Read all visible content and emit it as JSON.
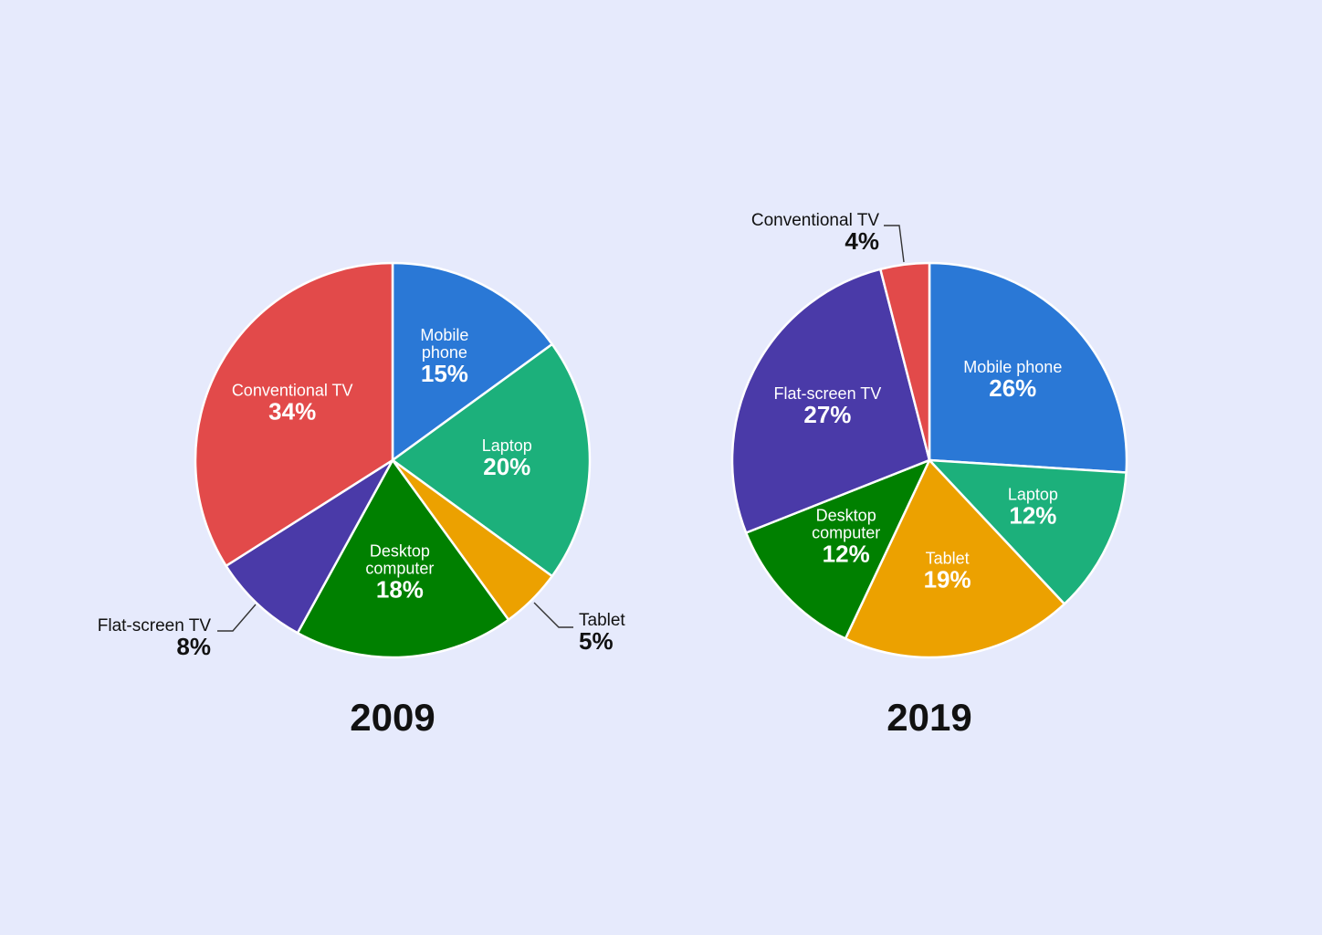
{
  "chart_data": [
    {
      "type": "pie",
      "title": "2009",
      "slices": [
        {
          "label": "Mobile\nphone",
          "value": 15,
          "display": "15%",
          "color": "#2a78d6"
        },
        {
          "label": "Laptop",
          "value": 20,
          "display": "20%",
          "color": "#1cb07b"
        },
        {
          "label": "Tablet",
          "value": 5,
          "display": "5%",
          "color": "#eca100"
        },
        {
          "label": "Desktop\ncomputer",
          "value": 18,
          "display": "18%",
          "color": "#008000"
        },
        {
          "label": "Flat-screen TV",
          "value": 8,
          "display": "8%",
          "color": "#4a3aa8"
        },
        {
          "label": "Conventional TV",
          "value": 34,
          "display": "34%",
          "color": "#e24a4a"
        }
      ]
    },
    {
      "type": "pie",
      "title": "2019",
      "slices": [
        {
          "label": "Mobile phone",
          "value": 26,
          "display": "26%",
          "color": "#2a78d6"
        },
        {
          "label": "Laptop",
          "value": 12,
          "display": "12%",
          "color": "#1cb07b"
        },
        {
          "label": "Tablet",
          "value": 19,
          "display": "19%",
          "color": "#eca100"
        },
        {
          "label": "Desktop\ncomputer",
          "value": 12,
          "display": "12%",
          "color": "#008000"
        },
        {
          "label": "Flat-screen TV",
          "value": 27,
          "display": "27%",
          "color": "#4a3aa8"
        },
        {
          "label": "Conventional TV",
          "value": 4,
          "display": "4%",
          "color": "#e24a4a"
        }
      ]
    }
  ]
}
